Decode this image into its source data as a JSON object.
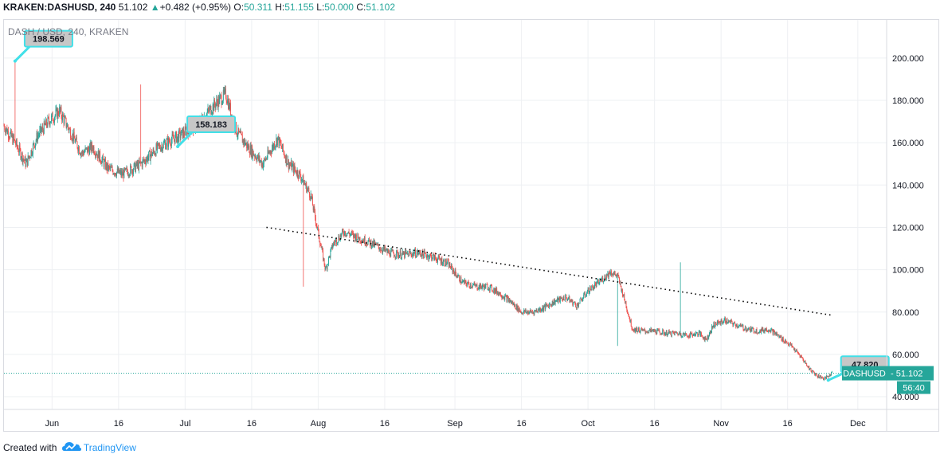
{
  "header": {
    "symbol": "KRAKEN:DASHUSD, 240",
    "last": "51.102",
    "change_arrow": "▲",
    "change": "+0.482 (+0.95%)",
    "o_label": "O:",
    "o_value": "50.311",
    "h_label": "H:",
    "h_value": "51.155",
    "l_label": "L:",
    "l_value": "50.000",
    "c_label": "C:",
    "c_value": "51.102"
  },
  "footer": {
    "created_with": "Created with",
    "brand": "TradingView",
    "logo_icon": "tradingview-cloud-icon"
  },
  "colors": {
    "up": "#26a69a",
    "down": "#ef5350",
    "callout": "#41e0e8",
    "trend": "#000000"
  },
  "chart_data": {
    "type": "candlestick",
    "title": "DASH / USD, 240, KRAKEN",
    "ylim": [
      34,
      218
    ],
    "grid": true,
    "x_ticks": [
      "Jun",
      "16",
      "Jul",
      "16",
      "Aug",
      "16",
      "Sep",
      "16",
      "Oct",
      "16",
      "Nov",
      "16",
      "Dec"
    ],
    "y_ticks": [
      "40.000",
      "60.000",
      "80.000",
      "100.000",
      "120.000",
      "140.000",
      "160.000",
      "180.000",
      "200.000"
    ],
    "price_series": {
      "name": "DASHUSD",
      "points": [
        [
          0,
          168
        ],
        [
          3,
          160
        ],
        [
          6,
          150
        ],
        [
          9,
          163
        ],
        [
          12,
          170
        ],
        [
          15,
          175
        ],
        [
          18,
          165
        ],
        [
          21,
          155
        ],
        [
          24,
          158
        ],
        [
          28,
          148
        ],
        [
          32,
          145
        ],
        [
          37,
          150
        ],
        [
          42,
          158
        ],
        [
          47,
          163
        ],
        [
          52,
          168
        ],
        [
          57,
          178
        ],
        [
          60,
          183
        ],
        [
          63,
          165
        ],
        [
          66,
          158
        ],
        [
          70,
          150
        ],
        [
          74,
          162
        ],
        [
          77,
          150
        ],
        [
          80,
          145
        ],
        [
          83,
          135
        ],
        [
          87,
          100
        ],
        [
          89,
          112
        ],
        [
          92,
          118
        ],
        [
          96,
          115
        ],
        [
          100,
          112
        ],
        [
          104,
          108
        ],
        [
          108,
          107
        ],
        [
          112,
          108
        ],
        [
          116,
          106
        ],
        [
          120,
          103
        ],
        [
          124,
          94
        ],
        [
          128,
          92
        ],
        [
          131,
          92
        ],
        [
          134,
          89
        ],
        [
          137,
          85
        ],
        [
          140,
          80
        ],
        [
          143,
          80
        ],
        [
          146,
          82
        ],
        [
          149,
          85
        ],
        [
          152,
          87
        ],
        [
          155,
          83
        ],
        [
          158,
          90
        ],
        [
          161,
          94
        ],
        [
          164,
          99
        ],
        [
          166,
          97
        ],
        [
          168,
          85
        ],
        [
          170,
          72
        ],
        [
          173,
          71
        ],
        [
          176,
          71
        ],
        [
          179,
          70
        ],
        [
          182,
          70
        ],
        [
          185,
          69
        ],
        [
          188,
          70
        ],
        [
          190,
          67
        ],
        [
          192,
          74
        ],
        [
          195,
          76
        ],
        [
          198,
          74
        ],
        [
          201,
          72
        ],
        [
          204,
          71
        ],
        [
          207,
          72
        ],
        [
          210,
          68
        ],
        [
          213,
          64
        ],
        [
          216,
          58
        ],
        [
          218,
          53
        ],
        [
          220,
          50
        ],
        [
          222,
          48.5
        ],
        [
          224,
          51.1
        ]
      ],
      "last_label": "DASHUSD",
      "last_value": "51.102",
      "countdown": "56:40"
    },
    "callouts": [
      {
        "label": "198.569",
        "day": 3,
        "value": 198.569
      },
      {
        "label": "158.183",
        "day": 47,
        "value": 158.183
      },
      {
        "label": "47.820",
        "day": 223,
        "value": 47.82
      }
    ],
    "trendline": {
      "from": [
        71,
        120
      ],
      "to": [
        224,
        78.5
      ]
    }
  }
}
